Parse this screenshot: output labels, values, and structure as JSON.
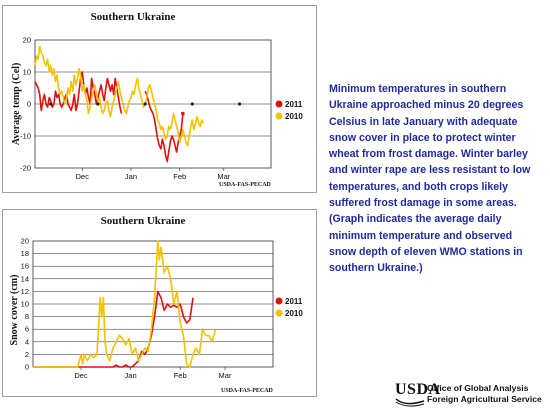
{
  "chart_data": [
    {
      "type": "line",
      "title": "Southern Ukraine",
      "xlabel": "",
      "ylabel": "Average temp (Cel)",
      "ylim": [
        -20,
        20
      ],
      "yticks": [
        20,
        10,
        0,
        -10,
        -20
      ],
      "xlim": [
        0,
        150
      ],
      "xticks": [
        {
          "label": "Dec",
          "x": 30
        },
        {
          "label": "Jan",
          "x": 61
        },
        {
          "label": "Feb",
          "x": 92
        },
        {
          "label": "Mar",
          "x": 120
        }
      ],
      "grid": true,
      "legend_position": "right",
      "source": "USDA-FAS-PECAD",
      "series": [
        {
          "name": "2011",
          "color": "#e01010",
          "marker_end": true,
          "points": [
            [
              0,
              7
            ],
            [
              1,
              6
            ],
            [
              2,
              5
            ],
            [
              3,
              3
            ],
            [
              4,
              -2
            ],
            [
              5,
              1
            ],
            [
              6,
              3
            ],
            [
              7,
              0
            ],
            [
              8,
              -1
            ],
            [
              9,
              2
            ],
            [
              10,
              1
            ],
            [
              11,
              -1
            ],
            [
              12,
              0
            ],
            [
              13,
              4
            ],
            [
              14,
              2
            ],
            [
              15,
              3
            ],
            [
              16,
              0
            ],
            [
              17,
              -1
            ],
            [
              18,
              0
            ],
            [
              19,
              2
            ],
            [
              20,
              3
            ],
            [
              21,
              0
            ],
            [
              22,
              -1
            ],
            [
              23,
              -2
            ],
            [
              24,
              0
            ],
            [
              25,
              3
            ],
            [
              26,
              -2
            ],
            [
              27,
              0
            ],
            [
              28,
              4
            ],
            [
              29,
              8
            ],
            [
              30,
              10
            ],
            [
              31,
              6
            ],
            [
              32,
              3
            ],
            [
              33,
              5
            ],
            [
              34,
              2
            ],
            [
              35,
              0
            ],
            [
              36,
              8
            ],
            [
              37,
              5
            ],
            [
              38,
              3
            ],
            [
              39,
              0
            ],
            [
              40,
              2
            ],
            [
              41,
              4
            ],
            [
              42,
              6
            ],
            [
              43,
              3
            ],
            [
              44,
              1
            ],
            [
              45,
              5
            ],
            [
              46,
              8
            ],
            [
              47,
              6
            ],
            [
              48,
              4
            ],
            [
              49,
              6
            ],
            [
              50,
              3
            ],
            [
              51,
              8
            ],
            [
              52,
              5
            ],
            [
              53,
              2
            ],
            [
              54,
              -1
            ],
            [
              55,
              -3
            ]
          ],
          "points_b": [
            [
              70,
              4
            ],
            [
              71,
              3
            ],
            [
              72,
              1
            ],
            [
              73,
              -1
            ],
            [
              74,
              -2
            ],
            [
              75,
              -3
            ],
            [
              76,
              -5
            ],
            [
              77,
              -8
            ],
            [
              78,
              -11
            ],
            [
              79,
              -13
            ],
            [
              80,
              -14
            ],
            [
              81,
              -11
            ],
            [
              82,
              -13
            ],
            [
              83,
              -16
            ],
            [
              84,
              -18
            ],
            [
              85,
              -15
            ],
            [
              86,
              -12
            ],
            [
              87,
              -10
            ],
            [
              88,
              -11
            ],
            [
              89,
              -13
            ],
            [
              90,
              -15
            ],
            [
              91,
              -12
            ],
            [
              92,
              -10
            ],
            [
              93,
              -8
            ],
            [
              94,
              -3
            ]
          ]
        },
        {
          "name": "2010",
          "color": "#f5c100",
          "marker_end": false,
          "points": [
            [
              0,
              12
            ],
            [
              1,
              15
            ],
            [
              2,
              14
            ],
            [
              3,
              18
            ],
            [
              4,
              16
            ],
            [
              5,
              15
            ],
            [
              6,
              13
            ],
            [
              7,
              12
            ],
            [
              8,
              14
            ],
            [
              9,
              10
            ],
            [
              10,
              12
            ],
            [
              11,
              9
            ],
            [
              12,
              11
            ],
            [
              13,
              7
            ],
            [
              14,
              9
            ],
            [
              15,
              5
            ],
            [
              16,
              3
            ],
            [
              17,
              4
            ],
            [
              18,
              2
            ],
            [
              19,
              0
            ],
            [
              20,
              2
            ],
            [
              21,
              5
            ],
            [
              22,
              3
            ],
            [
              23,
              7
            ],
            [
              24,
              4
            ],
            [
              25,
              9
            ],
            [
              26,
              6
            ],
            [
              27,
              8
            ],
            [
              28,
              11
            ],
            [
              29,
              9
            ],
            [
              30,
              4
            ],
            [
              31,
              6
            ],
            [
              32,
              3
            ],
            [
              33,
              1
            ],
            [
              34,
              -3
            ],
            [
              35,
              -1
            ],
            [
              36,
              2
            ],
            [
              37,
              4
            ],
            [
              38,
              6
            ],
            [
              39,
              3
            ],
            [
              40,
              1
            ],
            [
              41,
              2
            ],
            [
              42,
              -1
            ],
            [
              43,
              -3
            ],
            [
              44,
              -2
            ],
            [
              45,
              0
            ],
            [
              46,
              1
            ],
            [
              47,
              -2
            ],
            [
              48,
              -4
            ],
            [
              49,
              -1
            ],
            [
              50,
              1
            ],
            [
              51,
              3
            ],
            [
              52,
              5
            ],
            [
              53,
              7
            ],
            [
              54,
              4
            ],
            [
              55,
              2
            ],
            [
              56,
              0
            ],
            [
              57,
              -2
            ],
            [
              58,
              -3
            ],
            [
              59,
              -1
            ],
            [
              60,
              1
            ],
            [
              61,
              2
            ],
            [
              62,
              4
            ],
            [
              63,
              3
            ],
            [
              64,
              6
            ],
            [
              65,
              8
            ],
            [
              66,
              5
            ],
            [
              67,
              3
            ],
            [
              68,
              1
            ],
            [
              69,
              -1
            ],
            [
              70,
              0
            ],
            [
              71,
              2
            ],
            [
              72,
              5
            ],
            [
              73,
              6
            ],
            [
              74,
              4
            ],
            [
              75,
              2
            ],
            [
              76,
              0
            ],
            [
              77,
              -2
            ],
            [
              78,
              -5
            ],
            [
              79,
              -6
            ],
            [
              80,
              -8
            ],
            [
              81,
              -7
            ],
            [
              82,
              -9
            ],
            [
              83,
              -11
            ],
            [
              84,
              -10
            ],
            [
              85,
              -7
            ],
            [
              86,
              -8
            ],
            [
              87,
              -6
            ],
            [
              88,
              -3
            ],
            [
              89,
              -5
            ],
            [
              90,
              -7
            ],
            [
              91,
              -9
            ],
            [
              92,
              -12
            ],
            [
              93,
              -10
            ],
            [
              94,
              -8
            ],
            [
              95,
              -10
            ],
            [
              96,
              -12
            ],
            [
              97,
              -13
            ],
            [
              98,
              -10
            ],
            [
              99,
              -7
            ],
            [
              100,
              -5
            ],
            [
              101,
              -8
            ],
            [
              102,
              -6
            ],
            [
              103,
              -4
            ],
            [
              104,
              -6
            ],
            [
              105,
              -7
            ],
            [
              106,
              -5
            ],
            [
              107,
              -6
            ]
          ]
        }
      ]
    },
    {
      "type": "line",
      "title": "Southern Ukraine",
      "xlabel": "",
      "ylabel": "Snow cover (cm)",
      "ylim": [
        0,
        20
      ],
      "yticks": [
        20,
        18,
        16,
        14,
        12,
        10,
        8,
        6,
        4,
        2,
        0
      ],
      "xlim": [
        0,
        150
      ],
      "xticks": [
        {
          "label": "Dec",
          "x": 30
        },
        {
          "label": "Jan",
          "x": 61
        },
        {
          "label": "Feb",
          "x": 92
        },
        {
          "label": "Mar",
          "x": 120
        }
      ],
      "grid": true,
      "legend_position": "right",
      "source": "USDA-FAS-PECAD",
      "series": [
        {
          "name": "2011",
          "color": "#e01010",
          "marker_end": false,
          "points": [
            [
              0,
              0
            ],
            [
              20,
              0
            ],
            [
              30,
              0
            ],
            [
              40,
              0
            ],
            [
              50,
              0
            ],
            [
              52,
              0.3
            ],
            [
              54,
              0
            ],
            [
              56,
              0
            ],
            [
              58,
              0.3
            ],
            [
              60,
              0
            ],
            [
              62,
              0
            ],
            [
              64,
              0.5
            ],
            [
              66,
              1
            ],
            [
              68,
              2.5
            ],
            [
              70,
              2
            ],
            [
              72,
              3
            ],
            [
              74,
              5
            ],
            [
              76,
              8
            ],
            [
              78,
              12
            ],
            [
              80,
              11
            ],
            [
              82,
              9
            ],
            [
              84,
              10
            ],
            [
              86,
              9.5
            ],
            [
              88,
              9.8
            ],
            [
              90,
              9.5
            ],
            [
              92,
              10
            ],
            [
              94,
              8
            ],
            [
              96,
              7
            ],
            [
              98,
              7.5
            ],
            [
              100,
              11
            ]
          ]
        },
        {
          "name": "2010",
          "color": "#f5c100",
          "marker_end": false,
          "points": [
            [
              0,
              0
            ],
            [
              10,
              0
            ],
            [
              20,
              0
            ],
            [
              28,
              0
            ],
            [
              30,
              2
            ],
            [
              31,
              0.5
            ],
            [
              32,
              2
            ],
            [
              34,
              1
            ],
            [
              36,
              2
            ],
            [
              38,
              1.5
            ],
            [
              40,
              2
            ],
            [
              42,
              11
            ],
            [
              43,
              8
            ],
            [
              44,
              11
            ],
            [
              45,
              4
            ],
            [
              46,
              2
            ],
            [
              48,
              1
            ],
            [
              50,
              3
            ],
            [
              52,
              4
            ],
            [
              54,
              5
            ],
            [
              56,
              4.5
            ],
            [
              58,
              3.5
            ],
            [
              60,
              4.5
            ],
            [
              62,
              2
            ],
            [
              64,
              3
            ],
            [
              66,
              1
            ],
            [
              68,
              2
            ],
            [
              70,
              3
            ],
            [
              72,
              2.5
            ],
            [
              74,
              6
            ],
            [
              76,
              11
            ],
            [
              78,
              20
            ],
            [
              79,
              17
            ],
            [
              80,
              19
            ],
            [
              82,
              15
            ],
            [
              84,
              16
            ],
            [
              86,
              14
            ],
            [
              88,
              10
            ],
            [
              90,
              12
            ],
            [
              92,
              7
            ],
            [
              94,
              5
            ],
            [
              96,
              0.5
            ],
            [
              98,
              0
            ],
            [
              100,
              2
            ],
            [
              102,
              3
            ],
            [
              104,
              2
            ],
            [
              106,
              6
            ],
            [
              108,
              5
            ],
            [
              110,
              5
            ],
            [
              112,
              4
            ],
            [
              114,
              6
            ]
          ]
        }
      ]
    }
  ],
  "description": "Minimum temperatures in southern Ukraine approached minus 20 degrees Celsius in late January with adequate snow cover in place to protect winter wheat from frost damage. Winter barley and winter rape are less resistant to low temperatures, and both crops likely suffered frost damage in some areas. (Graph indicates the average daily minimum temperature and observed snow depth of eleven WMO stations in southern Ukraine.)",
  "footer": {
    "logo_text": "USDA",
    "line1": "Office of Global Analysis",
    "line2": "Foreign Agricultural Service"
  }
}
